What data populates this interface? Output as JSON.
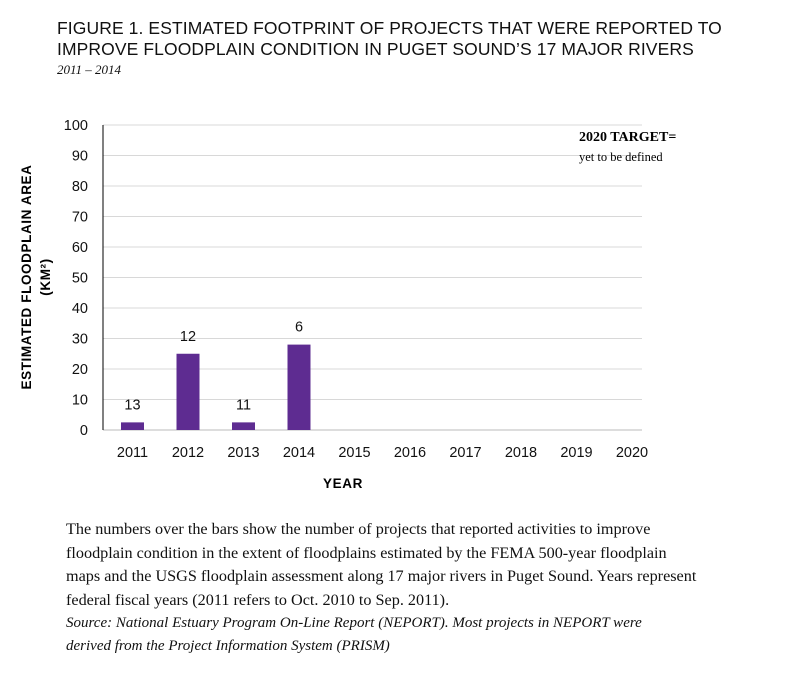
{
  "figure": {
    "title_line1": "FIGURE 1. ESTIMATED FOOTPRINT OF PROJECTS THAT WERE REPORTED TO",
    "title_line2": "IMPROVE FLOODPLAIN CONDITION IN PUGET SOUND’S 17 MAJOR RIVERS",
    "subtitle": "2011 – 2014"
  },
  "chart_data": {
    "type": "bar",
    "categories": [
      "2011",
      "2012",
      "2013",
      "2014",
      "2015",
      "2016",
      "2017",
      "2018",
      "2019",
      "2020"
    ],
    "values": [
      2.5,
      25,
      2.5,
      28,
      null,
      null,
      null,
      null,
      null,
      null
    ],
    "bar_labels": [
      "13",
      "12",
      "11",
      "6",
      "",
      "",
      "",
      "",
      "",
      ""
    ],
    "ylim": [
      0,
      100
    ],
    "yticks": [
      0,
      10,
      20,
      30,
      40,
      50,
      60,
      70,
      80,
      90,
      100
    ],
    "ylabel_line1": "ESTIMATED FLOODPLAIN AREA",
    "ylabel_line2": "(KM²)",
    "xlabel": "YEAR",
    "grid": true,
    "bar_color": "#5e2c91",
    "grid_color": "#d8d8d8",
    "annotation_title": "2020 TARGET=",
    "annotation_text": "yet to be defined"
  },
  "caption": {
    "body_line1": "The numbers over the bars show the number of projects that reported activities to improve",
    "body_line2": "floodplain condition in the extent of floodplains estimated by the FEMA 500-year floodplain",
    "body_line3": "maps and the USGS floodplain assessment along 17 major rivers in Puget Sound. Years represent",
    "body_line4": "federal fiscal years (2011 refers to Oct. 2010 to Sep. 2011).",
    "source_line1": "Source: National Estuary Program On-Line Report (NEPORT). Most projects in NEPORT were",
    "source_line2": "derived from the Project Information System (PRISM)"
  }
}
